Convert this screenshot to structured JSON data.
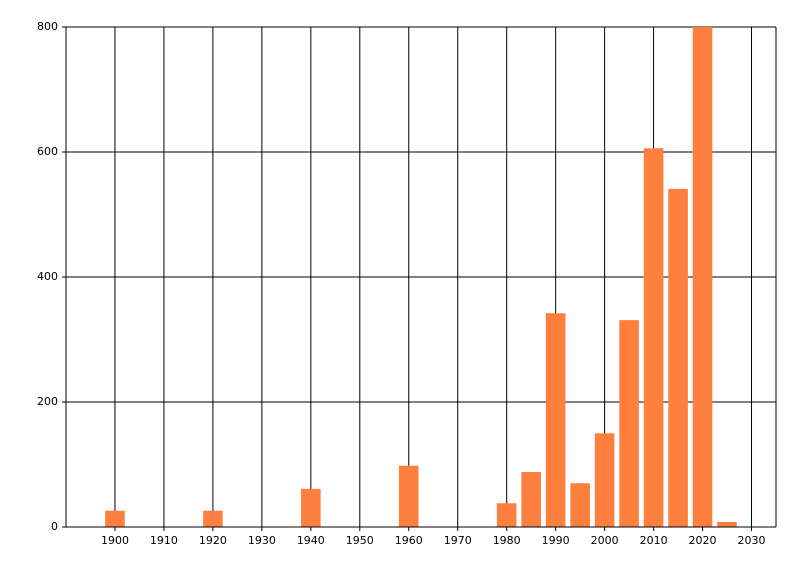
{
  "chart_data": {
    "type": "bar",
    "x": [
      1900,
      1920,
      1940,
      1960,
      1980,
      1985,
      1990,
      1995,
      2000,
      2005,
      2010,
      2015,
      2020,
      2025
    ],
    "values": [
      26,
      26,
      61,
      98,
      38,
      88,
      342,
      70,
      150,
      331,
      606,
      541,
      800,
      8
    ],
    "bar_width": 4,
    "color": "#ff7f3f",
    "xlim": [
      1890,
      2035
    ],
    "xticks": [
      1900,
      1910,
      1920,
      1930,
      1940,
      1950,
      1960,
      1970,
      1980,
      1990,
      2000,
      2010,
      2020,
      2030
    ],
    "ylim": [
      0,
      800
    ],
    "yticks": [
      0,
      200,
      400,
      600,
      800
    ],
    "grid": true
  }
}
